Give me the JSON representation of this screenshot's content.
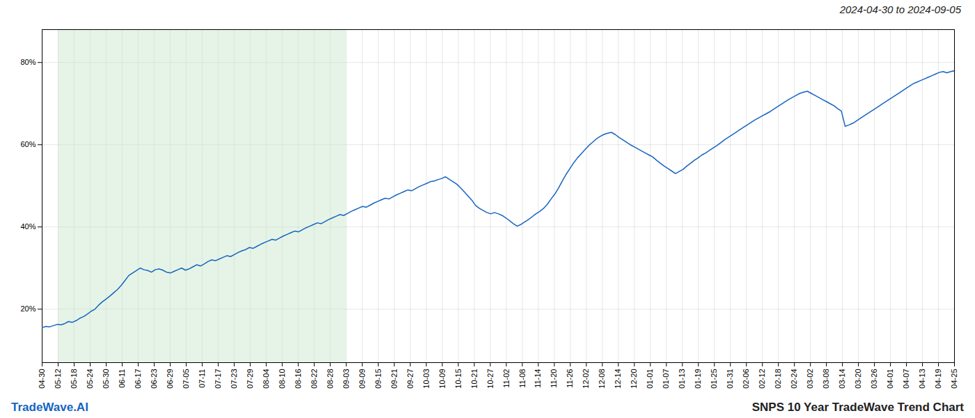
{
  "chart_data": {
    "type": "line",
    "title": "2024-04-30 to 2024-09-05",
    "annotations": [
      "TradeWave.AI",
      "SNPS 10 Year TradeWave Trend Chart"
    ],
    "color": "#1565c0",
    "grid": true,
    "highlight_range": [
      1,
      19
    ],
    "highlight_color": "#c8e6c9",
    "xlim": [
      0,
      57
    ],
    "xticks": [
      {
        "value": 0,
        "label": "04-30"
      },
      {
        "value": 1,
        "label": "05-12"
      },
      {
        "value": 2,
        "label": "05-18"
      },
      {
        "value": 3,
        "label": "05-24"
      },
      {
        "value": 4,
        "label": "05-30"
      },
      {
        "value": 5,
        "label": "06-11"
      },
      {
        "value": 6,
        "label": "06-17"
      },
      {
        "value": 7,
        "label": "06-23"
      },
      {
        "value": 8,
        "label": "06-29"
      },
      {
        "value": 9,
        "label": "07-05"
      },
      {
        "value": 10,
        "label": "07-11"
      },
      {
        "value": 11,
        "label": "07-17"
      },
      {
        "value": 12,
        "label": "07-23"
      },
      {
        "value": 13,
        "label": "07-29"
      },
      {
        "value": 14,
        "label": "08-04"
      },
      {
        "value": 15,
        "label": "08-10"
      },
      {
        "value": 16,
        "label": "08-16"
      },
      {
        "value": 17,
        "label": "08-22"
      },
      {
        "value": 18,
        "label": "08-28"
      },
      {
        "value": 19,
        "label": "09-03"
      },
      {
        "value": 20,
        "label": "09-09"
      },
      {
        "value": 21,
        "label": "09-15"
      },
      {
        "value": 22,
        "label": "09-21"
      },
      {
        "value": 23,
        "label": "09-27"
      },
      {
        "value": 24,
        "label": "10-03"
      },
      {
        "value": 25,
        "label": "10-09"
      },
      {
        "value": 26,
        "label": "10-15"
      },
      {
        "value": 27,
        "label": "10-21"
      },
      {
        "value": 28,
        "label": "10-27"
      },
      {
        "value": 29,
        "label": "11-02"
      },
      {
        "value": 30,
        "label": "11-08"
      },
      {
        "value": 31,
        "label": "11-14"
      },
      {
        "value": 32,
        "label": "11-20"
      },
      {
        "value": 33,
        "label": "11-26"
      },
      {
        "value": 34,
        "label": "12-02"
      },
      {
        "value": 35,
        "label": "12-08"
      },
      {
        "value": 36,
        "label": "12-14"
      },
      {
        "value": 37,
        "label": "12-20"
      },
      {
        "value": 38,
        "label": "01-01"
      },
      {
        "value": 39,
        "label": "01-07"
      },
      {
        "value": 40,
        "label": "01-13"
      },
      {
        "value": 41,
        "label": "01-19"
      },
      {
        "value": 42,
        "label": "01-25"
      },
      {
        "value": 43,
        "label": "01-31"
      },
      {
        "value": 44,
        "label": "02-06"
      },
      {
        "value": 45,
        "label": "02-12"
      },
      {
        "value": 46,
        "label": "02-18"
      },
      {
        "value": 47,
        "label": "02-24"
      },
      {
        "value": 48,
        "label": "03-02"
      },
      {
        "value": 49,
        "label": "03-08"
      },
      {
        "value": 50,
        "label": "03-14"
      },
      {
        "value": 51,
        "label": "03-20"
      },
      {
        "value": 52,
        "label": "03-26"
      },
      {
        "value": 53,
        "label": "04-01"
      },
      {
        "value": 54,
        "label": "04-07"
      },
      {
        "value": 55,
        "label": "04-13"
      },
      {
        "value": 56,
        "label": "04-19"
      },
      {
        "value": 57,
        "label": "04-25"
      }
    ],
    "ylim": [
      0.07,
      0.88
    ],
    "yticks": [
      {
        "value": 0.2,
        "label": "20%"
      },
      {
        "value": 0.4,
        "label": "40%"
      },
      {
        "value": 0.6,
        "label": "60%"
      },
      {
        "value": 0.8,
        "label": "80%"
      }
    ],
    "values": [
      0.155,
      0.158,
      0.157,
      0.16,
      0.163,
      0.162,
      0.165,
      0.17,
      0.168,
      0.172,
      0.178,
      0.182,
      0.188,
      0.195,
      0.2,
      0.21,
      0.218,
      0.225,
      0.232,
      0.24,
      0.248,
      0.258,
      0.27,
      0.282,
      0.288,
      0.294,
      0.3,
      0.296,
      0.294,
      0.29,
      0.296,
      0.298,
      0.295,
      0.29,
      0.288,
      0.292,
      0.296,
      0.3,
      0.295,
      0.298,
      0.303,
      0.308,
      0.305,
      0.31,
      0.316,
      0.32,
      0.318,
      0.322,
      0.326,
      0.33,
      0.328,
      0.333,
      0.338,
      0.342,
      0.345,
      0.35,
      0.348,
      0.353,
      0.358,
      0.362,
      0.366,
      0.37,
      0.368,
      0.373,
      0.378,
      0.382,
      0.386,
      0.39,
      0.388,
      0.393,
      0.398,
      0.402,
      0.406,
      0.41,
      0.408,
      0.413,
      0.418,
      0.422,
      0.426,
      0.43,
      0.428,
      0.433,
      0.438,
      0.442,
      0.446,
      0.45,
      0.448,
      0.453,
      0.458,
      0.462,
      0.466,
      0.47,
      0.468,
      0.473,
      0.478,
      0.482,
      0.486,
      0.49,
      0.488,
      0.493,
      0.498,
      0.502,
      0.506,
      0.51,
      0.512,
      0.515,
      0.518,
      0.522,
      0.516,
      0.51,
      0.504,
      0.495,
      0.485,
      0.475,
      0.465,
      0.452,
      0.445,
      0.44,
      0.435,
      0.432,
      0.435,
      0.432,
      0.428,
      0.422,
      0.415,
      0.408,
      0.402,
      0.406,
      0.412,
      0.418,
      0.425,
      0.432,
      0.438,
      0.445,
      0.455,
      0.468,
      0.48,
      0.495,
      0.512,
      0.528,
      0.542,
      0.556,
      0.568,
      0.578,
      0.588,
      0.598,
      0.606,
      0.614,
      0.62,
      0.625,
      0.628,
      0.63,
      0.625,
      0.618,
      0.612,
      0.606,
      0.6,
      0.595,
      0.59,
      0.585,
      0.58,
      0.575,
      0.57,
      0.562,
      0.555,
      0.548,
      0.542,
      0.536,
      0.53,
      0.535,
      0.54,
      0.548,
      0.555,
      0.562,
      0.568,
      0.575,
      0.58,
      0.586,
      0.592,
      0.598,
      0.605,
      0.612,
      0.618,
      0.624,
      0.63,
      0.636,
      0.642,
      0.648,
      0.654,
      0.66,
      0.665,
      0.67,
      0.675,
      0.68,
      0.686,
      0.692,
      0.698,
      0.704,
      0.71,
      0.715,
      0.72,
      0.725,
      0.728,
      0.73,
      0.725,
      0.72,
      0.715,
      0.71,
      0.705,
      0.7,
      0.695,
      0.688,
      0.682,
      0.645,
      0.648,
      0.652,
      0.658,
      0.664,
      0.67,
      0.676,
      0.682,
      0.688,
      0.694,
      0.7,
      0.706,
      0.712,
      0.718,
      0.724,
      0.73,
      0.736,
      0.742,
      0.748,
      0.752,
      0.756,
      0.76,
      0.764,
      0.768,
      0.772,
      0.776,
      0.778,
      0.775,
      0.778,
      0.78
    ]
  }
}
